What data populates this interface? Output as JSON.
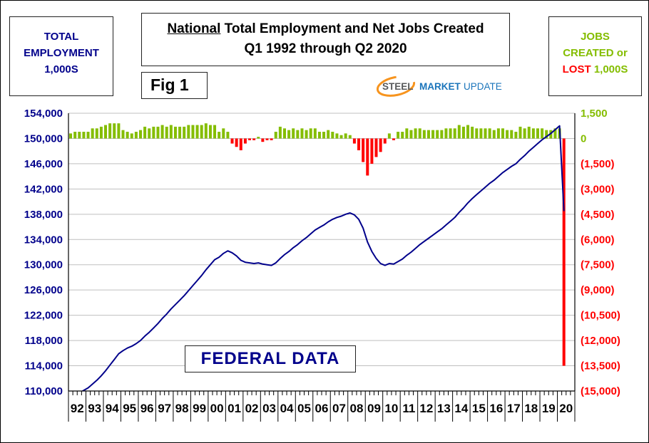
{
  "header": {
    "left_box": {
      "line1": "TOTAL",
      "line2": "EMPLOYMENT",
      "line3": "1,000S"
    },
    "title_box": {
      "emphasis": "National",
      "rest": " Total Employment and Net Jobs Created",
      "line2": "Q1 1992 through Q2 2020"
    },
    "fig_label": "Fig 1",
    "logo": {
      "steel": "STEEL",
      "market": "MARKET",
      "update": "UPDATE"
    },
    "right_box": {
      "line1": "JOBS",
      "line2": "CREATED or",
      "line3_lost": "LOST",
      "line3_units": "1,000S"
    }
  },
  "annotation": {
    "federal_data": "FEDERAL DATA"
  },
  "colors": {
    "navy": "#00008B",
    "green": "#84BD00",
    "red": "#FF0000",
    "grid": "#BFBFBF",
    "axis": "#000000",
    "logo_orange": "#F7941E",
    "logo_gray": "#58595B",
    "logo_blue": "#1B75BB"
  },
  "chart_data": {
    "type": "combo",
    "title": "National Total Employment and Net Jobs Created",
    "subtitle": "Q1 1992 through Q2 2020",
    "x_tick_labels": [
      "92",
      "93",
      "94",
      "95",
      "96",
      "97",
      "98",
      "99",
      "00",
      "01",
      "02",
      "03",
      "04",
      "05",
      "06",
      "07",
      "08",
      "09",
      "10",
      "11",
      "12",
      "13",
      "14",
      "15",
      "16",
      "17",
      "18",
      "19",
      "20"
    ],
    "points_count": 114,
    "x_slots": 116,
    "left_axis": {
      "title": "TOTAL EMPLOYMENT 1,000S",
      "min": 110000,
      "max": 154000,
      "step": 4000,
      "tick_labels": [
        "154,000",
        "150,000",
        "146,000",
        "142,000",
        "138,000",
        "134,000",
        "130,000",
        "126,000",
        "122,000",
        "118,000",
        "114,000",
        "110,000"
      ]
    },
    "right_axis": {
      "title": "JOBS CREATED or LOST 1,000S",
      "min": -15000,
      "max": 1500,
      "step": 1500,
      "tick_labels": [
        "1,500",
        "0",
        "(1,500)",
        "(3,000)",
        "(4,500)",
        "(6,000)",
        "(7,500)",
        "(9,000)",
        "(10,500)",
        "(12,000)",
        "(13,500)",
        "(15,000)"
      ]
    },
    "series": [
      {
        "name": "Total Employment (1,000s)",
        "type": "line",
        "color": "#00008B",
        "values": [
          108900,
          109300,
          109700,
          110100,
          110500,
          111100,
          111700,
          112400,
          113200,
          114100,
          115000,
          115900,
          116400,
          116800,
          117100,
          117500,
          118000,
          118700,
          119300,
          120000,
          120700,
          121500,
          122200,
          123000,
          123700,
          124400,
          125100,
          125900,
          126700,
          127500,
          128300,
          129200,
          130000,
          130800,
          131200,
          131800,
          132200,
          131900,
          131400,
          130700,
          130400,
          130300,
          130200,
          130300,
          130100,
          130000,
          129900,
          130300,
          131000,
          131600,
          132100,
          132700,
          133200,
          133800,
          134300,
          134900,
          135500,
          135900,
          136300,
          136800,
          137200,
          137500,
          137700,
          138000,
          138200,
          137900,
          137200,
          135800,
          133600,
          132100,
          131000,
          130200,
          129900,
          130200,
          130100,
          130500,
          130900,
          131500,
          132000,
          132600,
          133200,
          133700,
          134200,
          134700,
          135200,
          135700,
          136300,
          136900,
          137500,
          138300,
          139000,
          139800,
          140500,
          141100,
          141700,
          142300,
          142900,
          143400,
          144000,
          144600,
          145100,
          145600,
          146000,
          146700,
          147300,
          148000,
          148600,
          149200,
          149800,
          150300,
          150800,
          151400,
          152000,
          138500
        ]
      },
      {
        "name": "Net Jobs Created (1,000s)",
        "type": "bar",
        "color_positive": "#84BD00",
        "color_negative": "#FF0000",
        "values": [
          300,
          400,
          400,
          400,
          400,
          600,
          600,
          700,
          800,
          900,
          900,
          900,
          500,
          400,
          300,
          400,
          500,
          700,
          600,
          700,
          700,
          800,
          700,
          800,
          700,
          700,
          700,
          800,
          800,
          800,
          800,
          900,
          800,
          800,
          400,
          600,
          400,
          -300,
          -500,
          -700,
          -300,
          -100,
          -100,
          100,
          -200,
          -100,
          -100,
          400,
          700,
          600,
          500,
          600,
          500,
          600,
          500,
          600,
          600,
          400,
          400,
          500,
          400,
          300,
          200,
          300,
          200,
          -300,
          -700,
          -1400,
          -2200,
          -1500,
          -1100,
          -800,
          -300,
          300,
          -100,
          400,
          400,
          600,
          500,
          600,
          600,
          500,
          500,
          500,
          500,
          500,
          600,
          600,
          600,
          800,
          700,
          800,
          700,
          600,
          600,
          600,
          600,
          500,
          600,
          600,
          500,
          500,
          400,
          700,
          600,
          700,
          600,
          600,
          600,
          500,
          500,
          600,
          600,
          -13500
        ]
      }
    ]
  }
}
